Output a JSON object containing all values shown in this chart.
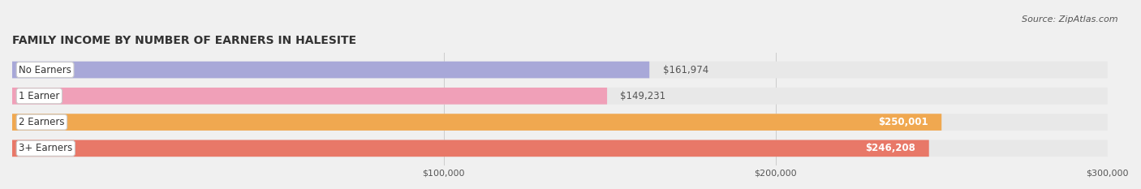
{
  "title": "FAMILY INCOME BY NUMBER OF EARNERS IN HALESITE",
  "source": "Source: ZipAtlas.com",
  "categories": [
    "No Earners",
    "1 Earner",
    "2 Earners",
    "3+ Earners"
  ],
  "values": [
    161974,
    149231,
    250001,
    246208
  ],
  "bar_colors": [
    "#a8a8d8",
    "#f0a0b8",
    "#f0a850",
    "#e87868"
  ],
  "bar_label_colors": [
    "#555555",
    "#555555",
    "#ffffff",
    "#ffffff"
  ],
  "value_labels": [
    "$161,974",
    "$149,231",
    "$250,001",
    "$246,208"
  ],
  "xlim": [
    0,
    300000
  ],
  "xticks": [
    100000,
    200000,
    300000
  ],
  "xtick_labels": [
    "$100,000",
    "$200,000",
    "$300,000"
  ],
  "background_color": "#f0f0f0",
  "bar_background_color": "#e8e8e8",
  "bar_height": 0.62,
  "title_fontsize": 10,
  "source_fontsize": 8,
  "label_fontsize": 8.5,
  "value_fontsize": 8.5
}
